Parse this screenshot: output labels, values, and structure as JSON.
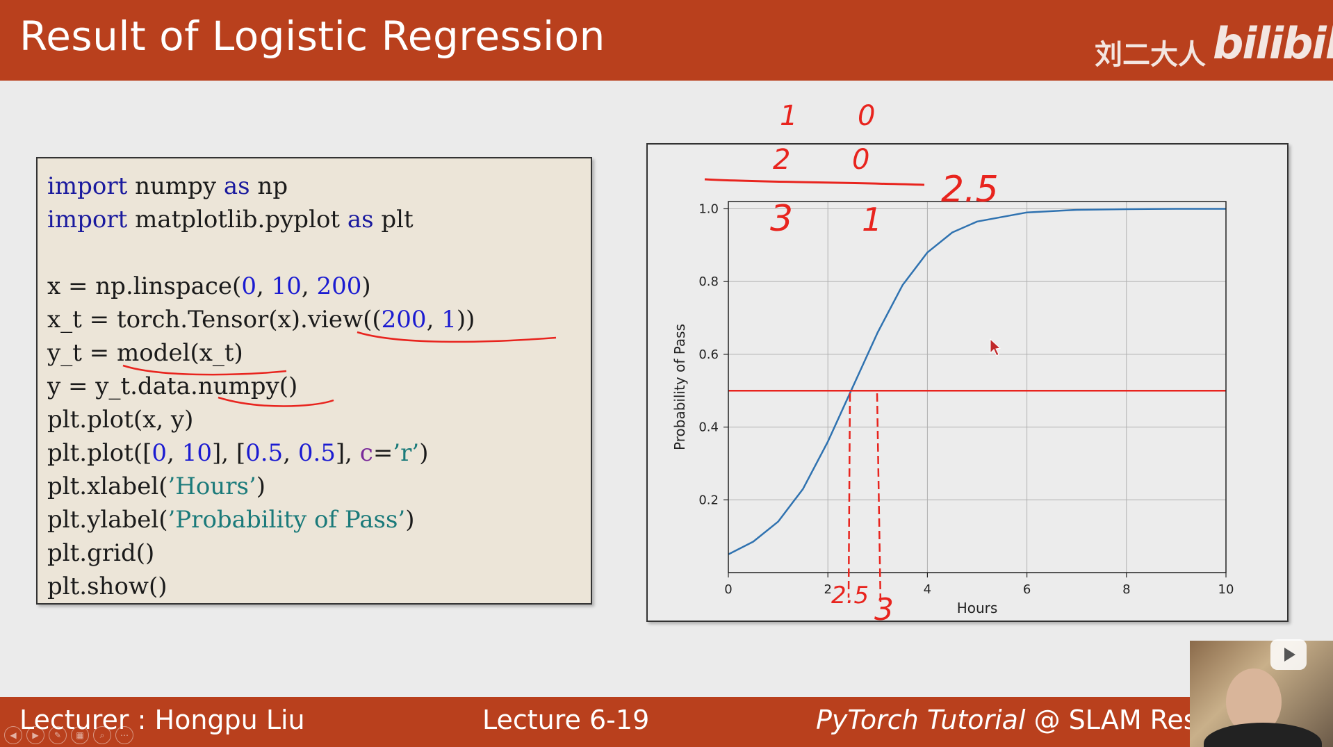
{
  "header": {
    "title": "Result of Logistic Regression",
    "brand_cn": "刘二大人",
    "brand_logo": "bilibili"
  },
  "code": {
    "lines": [
      [
        {
          "t": "import",
          "c": "kw"
        },
        {
          "t": " numpy "
        },
        {
          "t": "as",
          "c": "kw"
        },
        {
          "t": " np"
        }
      ],
      [
        {
          "t": "import",
          "c": "kw"
        },
        {
          "t": " matplotlib.pyplot "
        },
        {
          "t": "as",
          "c": "kw"
        },
        {
          "t": " plt"
        }
      ],
      [],
      [
        {
          "t": "x = np.linspace("
        },
        {
          "t": "0",
          "c": "num"
        },
        {
          "t": ", "
        },
        {
          "t": "10",
          "c": "num"
        },
        {
          "t": ", "
        },
        {
          "t": "200",
          "c": "num"
        },
        {
          "t": ")"
        }
      ],
      [
        {
          "t": "x_t = torch.Tensor(x).view(("
        },
        {
          "t": "200",
          "c": "num"
        },
        {
          "t": ", "
        },
        {
          "t": "1",
          "c": "num"
        },
        {
          "t": "))"
        }
      ],
      [
        {
          "t": "y_t = model(x_t)"
        }
      ],
      [
        {
          "t": "y = y_t.data.numpy()"
        }
      ],
      [
        {
          "t": "plt.plot(x, y)"
        }
      ],
      [
        {
          "t": "plt.plot(["
        },
        {
          "t": "0",
          "c": "num"
        },
        {
          "t": ", "
        },
        {
          "t": "10",
          "c": "num"
        },
        {
          "t": "], ["
        },
        {
          "t": "0.5",
          "c": "num"
        },
        {
          "t": ", "
        },
        {
          "t": "0.5",
          "c": "num"
        },
        {
          "t": "], "
        },
        {
          "t": "c",
          "c": "kwarg"
        },
        {
          "t": "="
        },
        {
          "t": "’r’",
          "c": "str"
        },
        {
          "t": ")"
        }
      ],
      [
        {
          "t": "plt.xlabel("
        },
        {
          "t": "’Hours’",
          "c": "str"
        },
        {
          "t": ")"
        }
      ],
      [
        {
          "t": "plt.ylabel("
        },
        {
          "t": "’Probability of Pass’",
          "c": "str"
        },
        {
          "t": ")"
        }
      ],
      [
        {
          "t": "plt.grid()"
        }
      ],
      [
        {
          "t": "plt.show()"
        }
      ]
    ]
  },
  "annotations": {
    "top_row1": [
      "1",
      "0"
    ],
    "top_row2": [
      "2",
      "0"
    ],
    "top_row3": [
      "3",
      "1"
    ],
    "top_right": "2.5",
    "bottom_left": "2.5",
    "bottom_right": "3"
  },
  "chart_data": {
    "type": "line",
    "xlabel": "Hours",
    "ylabel": "Probability of Pass",
    "xlim": [
      0,
      10
    ],
    "ylim": [
      0.0,
      1.02
    ],
    "xticks": [
      "0",
      "2",
      "4",
      "6",
      "8",
      "10"
    ],
    "yticks": [
      "0.2",
      "0.4",
      "0.6",
      "0.8",
      "1.0"
    ],
    "grid": true,
    "series": [
      {
        "color": "#2f72b0",
        "x": [
          0,
          0.5,
          1,
          1.5,
          2,
          2.4,
          2.7,
          3,
          3.5,
          4,
          4.5,
          5,
          6,
          7,
          8,
          9,
          10
        ],
        "y": [
          0.05,
          0.085,
          0.14,
          0.23,
          0.36,
          0.48,
          0.57,
          0.66,
          0.79,
          0.88,
          0.935,
          0.965,
          0.99,
          0.997,
          0.999,
          1.0,
          1.0
        ]
      },
      {
        "color": "#e8241e",
        "x": [
          0,
          10
        ],
        "y": [
          0.5,
          0.5
        ]
      }
    ]
  },
  "footer": {
    "lecturer": "Lecturer : Hongpu Liu",
    "lecture": "Lecture 6-19",
    "course_italic": "PyTorch Tutorial",
    "course_rest": " @ SLAM Resea"
  },
  "colors": {
    "accent": "#b9401d",
    "annotation": "#e8241e"
  }
}
